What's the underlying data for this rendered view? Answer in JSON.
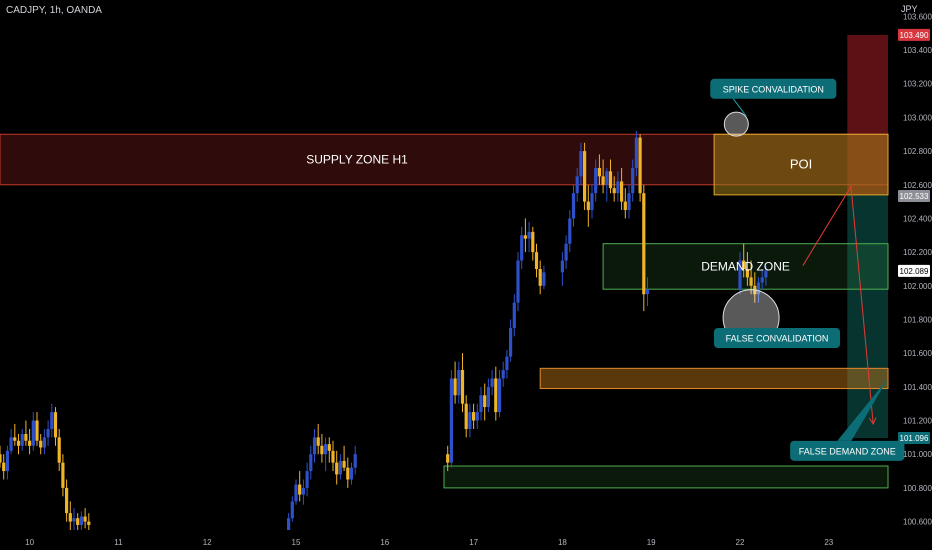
{
  "header": {
    "symbol": "CADJPY, 1h, OANDA",
    "currency": "JPY"
  },
  "colors": {
    "bull": "#2e50c9",
    "bear": "#f0b429",
    "background": "#000000",
    "supply": "#8a1f1f",
    "poi": "#a07d17",
    "demand": "#3f8a3f",
    "orange_zone": "#c97a1a",
    "annotation": "#0c6d76",
    "price_tag_current": "#ffffff",
    "price_tag_target": "#d8363d",
    "price_tag_stop": "#0c6d76"
  },
  "chart_data": {
    "type": "candlestick",
    "yaxis": {
      "range": [
        100.55,
        103.62
      ],
      "ticks": [
        "100.600",
        "100.800",
        "101.000",
        "101.200",
        "101.400",
        "101.600",
        "101.800",
        "102.000",
        "102.200",
        "102.400",
        "102.600",
        "102.800",
        "103.000",
        "103.200",
        "103.400",
        "103.600"
      ],
      "tick_values": [
        100.6,
        100.8,
        101.0,
        101.2,
        101.4,
        101.6,
        101.8,
        102.0,
        102.2,
        102.4,
        102.6,
        102.8,
        103.0,
        103.2,
        103.4,
        103.6
      ]
    },
    "xaxis": {
      "labels": [
        "10",
        "11",
        "12",
        "15",
        "16",
        "17",
        "18",
        "19",
        "22",
        "23"
      ],
      "label_hours": [
        0,
        24,
        48,
        72,
        96,
        120,
        144,
        168,
        192,
        216
      ],
      "hour_range": [
        -8,
        232
      ]
    },
    "price_tags": [
      {
        "label": "103.490",
        "value": 103.49,
        "kind": "target"
      },
      {
        "label": "102.533",
        "value": 102.533,
        "kind": "grey"
      },
      {
        "label": "102.089",
        "value": 102.089,
        "kind": "current"
      },
      {
        "label": "101.096",
        "value": 101.096,
        "kind": "stop"
      }
    ],
    "zones": [
      {
        "name": "supply-zone-h1",
        "label": "SUPPLY ZONE H1",
        "h0": -8,
        "h1": 232,
        "high": 102.9,
        "low": 102.6,
        "kind": "supply"
      },
      {
        "name": "poi-zone",
        "label": "POI",
        "h0": 185,
        "h1": 232,
        "high": 102.9,
        "low": 102.54,
        "kind": "poi"
      },
      {
        "name": "demand-zone",
        "label": "DEMAND ZONE",
        "h0": 155,
        "h1": 232,
        "high": 102.25,
        "low": 101.98,
        "kind": "demand"
      },
      {
        "name": "orange-zone",
        "label": "",
        "h0": 138,
        "h1": 232,
        "high": 101.51,
        "low": 101.39,
        "kind": "orange"
      },
      {
        "name": "lower-demand-zone",
        "label": "",
        "h0": 112,
        "h1": 232,
        "high": 100.93,
        "low": 100.8,
        "kind": "demand"
      }
    ],
    "annotations": [
      {
        "name": "spike-convalidation",
        "label": "SPIKE CONVALIDATION",
        "h": 201,
        "value": 103.17
      },
      {
        "name": "false-convalidation",
        "label": "FALSE CONVALIDATION",
        "h": 202,
        "value": 101.69
      },
      {
        "name": "false-demand-zone",
        "label": "FALSE DEMAND ZONE",
        "h": 221,
        "value": 101.02
      }
    ],
    "circles": [
      {
        "name": "spike-circle",
        "h": 191,
        "value": 102.96,
        "r": 12
      },
      {
        "name": "false-convalidation-circle",
        "h": 195,
        "value": 101.81,
        "r": 28
      }
    ],
    "risk_boxes": [
      {
        "name": "target-box",
        "h0": 221,
        "h1": 232,
        "high": 103.49,
        "low": 102.54,
        "kind": "target"
      },
      {
        "name": "stop-box",
        "h0": 221,
        "h1": 232,
        "high": 102.54,
        "low": 101.096,
        "kind": "stop"
      }
    ],
    "arrows": [
      {
        "points": [
          [
            209,
            102.12
          ],
          [
            222,
            102.59
          ],
          [
            228,
            101.18
          ]
        ]
      }
    ],
    "candles": [
      [
        -8,
        101.0,
        101.05,
        100.92,
        100.95
      ],
      [
        -7,
        100.95,
        101.0,
        100.85,
        100.9
      ],
      [
        -6,
        100.9,
        101.05,
        100.85,
        101.02
      ],
      [
        -5,
        101.02,
        101.15,
        101.0,
        101.1
      ],
      [
        -4,
        101.1,
        101.18,
        101.05,
        101.08
      ],
      [
        -3,
        101.08,
        101.12,
        101.0,
        101.05
      ],
      [
        -2,
        101.05,
        101.15,
        101.02,
        101.12
      ],
      [
        -1,
        101.12,
        101.2,
        101.05,
        101.08
      ],
      [
        0,
        101.08,
        101.15,
        101.0,
        101.05
      ],
      [
        1,
        101.05,
        101.25,
        101.02,
        101.2
      ],
      [
        2,
        101.2,
        101.25,
        101.05,
        101.08
      ],
      [
        3,
        101.08,
        101.12,
        101.0,
        101.04
      ],
      [
        4,
        101.04,
        101.15,
        101.0,
        101.1
      ],
      [
        5,
        101.1,
        101.2,
        101.05,
        101.15
      ],
      [
        6,
        101.15,
        101.3,
        101.1,
        101.25
      ],
      [
        7,
        101.25,
        101.28,
        101.05,
        101.1
      ],
      [
        8,
        101.1,
        101.15,
        100.9,
        100.95
      ],
      [
        9,
        100.95,
        101.0,
        100.75,
        100.8
      ],
      [
        10,
        100.8,
        100.85,
        100.6,
        100.65
      ],
      [
        11,
        100.65,
        100.72,
        100.55,
        100.6
      ],
      [
        12,
        100.6,
        100.68,
        100.55,
        100.62
      ],
      [
        13,
        100.62,
        100.65,
        100.55,
        100.58
      ],
      [
        14,
        100.58,
        100.66,
        100.55,
        100.63
      ],
      [
        15,
        100.63,
        100.68,
        100.56,
        100.6
      ],
      [
        16,
        100.6,
        100.65,
        100.55,
        100.58
      ],
      [
        70,
        100.55,
        100.65,
        100.55,
        100.62
      ],
      [
        71,
        100.62,
        100.75,
        100.6,
        100.72
      ],
      [
        72,
        100.72,
        100.85,
        100.7,
        100.82
      ],
      [
        73,
        100.82,
        100.9,
        100.72,
        100.76
      ],
      [
        74,
        100.76,
        100.85,
        100.7,
        100.8
      ],
      [
        75,
        100.8,
        100.95,
        100.75,
        100.9
      ],
      [
        76,
        100.9,
        101.05,
        100.85,
        101.0
      ],
      [
        77,
        101.0,
        101.15,
        100.95,
        101.1
      ],
      [
        78,
        101.1,
        101.18,
        101.0,
        101.05
      ],
      [
        79,
        101.05,
        101.12,
        100.95,
        101.0
      ],
      [
        80,
        101.0,
        101.1,
        100.9,
        101.06
      ],
      [
        81,
        101.06,
        101.1,
        100.95,
        101.02
      ],
      [
        82,
        101.02,
        101.08,
        100.9,
        100.95
      ],
      [
        83,
        100.95,
        101.02,
        100.82,
        100.88
      ],
      [
        84,
        100.88,
        101.0,
        100.85,
        100.96
      ],
      [
        85,
        100.96,
        101.05,
        100.9,
        100.92
      ],
      [
        86,
        100.92,
        100.98,
        100.8,
        100.85
      ],
      [
        87,
        100.85,
        100.95,
        100.82,
        100.92
      ],
      [
        88,
        100.92,
        101.05,
        100.88,
        101.0
      ],
      [
        113,
        101.0,
        101.05,
        100.9,
        100.95
      ],
      [
        114,
        100.95,
        101.5,
        100.92,
        101.45
      ],
      [
        115,
        101.45,
        101.55,
        101.3,
        101.35
      ],
      [
        116,
        101.35,
        101.55,
        101.3,
        101.5
      ],
      [
        117,
        101.5,
        101.6,
        101.25,
        101.3
      ],
      [
        118,
        101.3,
        101.35,
        101.1,
        101.15
      ],
      [
        119,
        101.15,
        101.3,
        101.1,
        101.25
      ],
      [
        120,
        101.25,
        101.3,
        101.15,
        101.2
      ],
      [
        121,
        101.2,
        101.3,
        101.15,
        101.25
      ],
      [
        122,
        101.25,
        101.4,
        101.2,
        101.35
      ],
      [
        123,
        101.35,
        101.42,
        101.2,
        101.28
      ],
      [
        124,
        101.28,
        101.45,
        101.25,
        101.4
      ],
      [
        125,
        101.4,
        101.5,
        101.35,
        101.45
      ],
      [
        126,
        101.45,
        101.52,
        101.2,
        101.25
      ],
      [
        127,
        101.25,
        101.5,
        101.22,
        101.45
      ],
      [
        128,
        101.45,
        101.55,
        101.4,
        101.5
      ],
      [
        129,
        101.5,
        101.62,
        101.45,
        101.58
      ],
      [
        130,
        101.58,
        101.8,
        101.55,
        101.75
      ],
      [
        131,
        101.75,
        101.95,
        101.7,
        101.9
      ],
      [
        132,
        101.9,
        102.2,
        101.85,
        102.15
      ],
      [
        133,
        102.15,
        102.35,
        102.1,
        102.3
      ],
      [
        134,
        102.3,
        102.4,
        102.2,
        102.28
      ],
      [
        135,
        102.28,
        102.38,
        102.2,
        102.32
      ],
      [
        136,
        102.32,
        102.35,
        102.15,
        102.2
      ],
      [
        137,
        102.2,
        102.25,
        102.05,
        102.1
      ],
      [
        138,
        102.1,
        102.15,
        101.95,
        102.0
      ],
      [
        139,
        102.0,
        102.12,
        101.98,
        102.08
      ],
      [
        144,
        102.08,
        102.2,
        102.0,
        102.15
      ],
      [
        145,
        102.15,
        102.3,
        102.1,
        102.25
      ],
      [
        146,
        102.25,
        102.45,
        102.2,
        102.4
      ],
      [
        147,
        102.4,
        102.6,
        102.35,
        102.55
      ],
      [
        148,
        102.55,
        102.7,
        102.5,
        102.65
      ],
      [
        149,
        102.65,
        102.85,
        102.6,
        102.8
      ],
      [
        150,
        102.8,
        102.85,
        102.45,
        102.5
      ],
      [
        151,
        102.5,
        102.6,
        102.35,
        102.45
      ],
      [
        152,
        102.45,
        102.6,
        102.4,
        102.55
      ],
      [
        153,
        102.55,
        102.75,
        102.5,
        102.7
      ],
      [
        154,
        102.7,
        102.78,
        102.6,
        102.65
      ],
      [
        155,
        102.65,
        102.75,
        102.55,
        102.6
      ],
      [
        156,
        102.6,
        102.7,
        102.5,
        102.68
      ],
      [
        157,
        102.68,
        102.75,
        102.55,
        102.58
      ],
      [
        158,
        102.58,
        102.65,
        102.5,
        102.55
      ],
      [
        159,
        102.55,
        102.68,
        102.5,
        102.62
      ],
      [
        160,
        102.62,
        102.7,
        102.45,
        102.5
      ],
      [
        161,
        102.5,
        102.58,
        102.4,
        102.45
      ],
      [
        162,
        102.45,
        102.6,
        102.4,
        102.55
      ],
      [
        163,
        102.55,
        102.75,
        102.5,
        102.7
      ],
      [
        164,
        102.7,
        102.92,
        102.65,
        102.88
      ],
      [
        165,
        102.88,
        102.9,
        102.5,
        102.55
      ],
      [
        166,
        102.55,
        102.6,
        101.85,
        101.95
      ],
      [
        167,
        101.95,
        102.05,
        101.88,
        101.98
      ],
      [
        192,
        101.98,
        102.2,
        101.95,
        102.15
      ],
      [
        193,
        102.15,
        102.25,
        102.05,
        102.1
      ],
      [
        194,
        102.1,
        102.2,
        102.0,
        102.05
      ],
      [
        195,
        102.05,
        102.15,
        101.95,
        102.0
      ],
      [
        196,
        102.0,
        102.08,
        101.9,
        101.95
      ],
      [
        197,
        101.95,
        102.05,
        101.9,
        102.02
      ],
      [
        198,
        102.02,
        102.1,
        101.98,
        102.05
      ],
      [
        199,
        102.05,
        102.12,
        102.0,
        102.09
      ]
    ]
  }
}
